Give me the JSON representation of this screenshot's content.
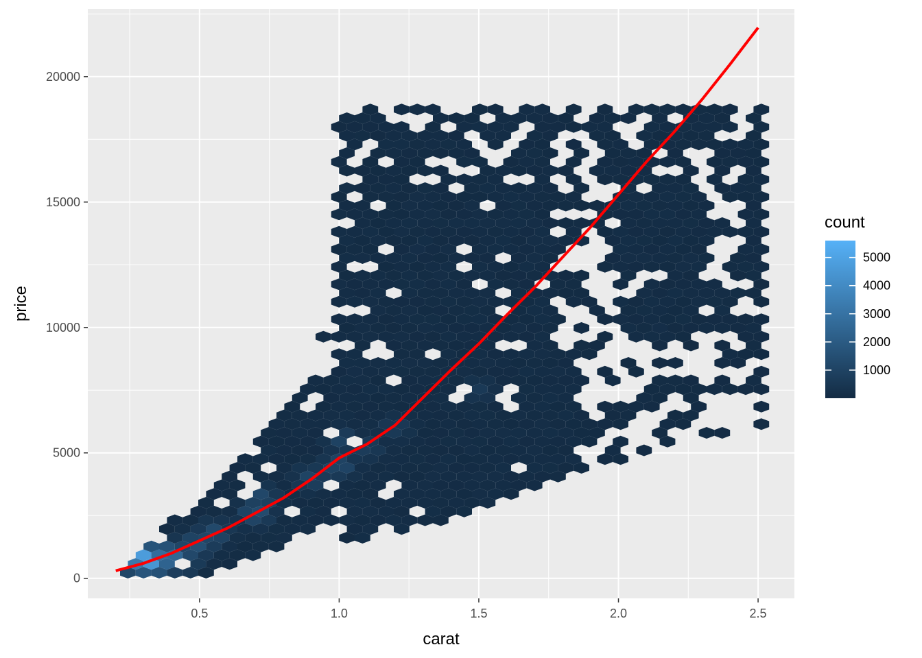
{
  "chart_data": {
    "type": "hexbin",
    "xlabel": "carat",
    "ylabel": "price",
    "xlim": [
      0.1,
      2.63
    ],
    "ylim": [
      -800,
      22700
    ],
    "x_ticks": [
      0.5,
      1.0,
      1.5,
      2.0,
      2.5
    ],
    "x_tick_labels": [
      "0.5",
      "1.0",
      "1.5",
      "2.0",
      "2.5"
    ],
    "y_ticks": [
      0,
      5000,
      10000,
      15000,
      20000
    ],
    "y_tick_labels": [
      "0",
      "5000",
      "10000",
      "15000",
      "20000"
    ],
    "grid": true,
    "panel_background": "#EBEBEB",
    "legend": {
      "title": "count",
      "position": "right",
      "range": [
        1,
        5600
      ],
      "breaks": [
        1000,
        2000,
        3000,
        4000,
        5000
      ],
      "break_labels": [
        "1000",
        "2000",
        "3000",
        "4000",
        "5000"
      ],
      "low_color": "#132B43",
      "high_color": "#56B1F7"
    },
    "hex_bins": [
      {
        "x": 0.31,
        "y": 750,
        "count": 5500
      },
      {
        "x": 0.35,
        "y": 650,
        "count": 3300
      },
      {
        "x": 0.4,
        "y": 950,
        "count": 2600
      },
      {
        "x": 0.43,
        "y": 700,
        "count": 2200
      },
      {
        "x": 0.26,
        "y": 500,
        "count": 1700
      },
      {
        "x": 0.5,
        "y": 1400,
        "count": 1600
      },
      {
        "x": 0.55,
        "y": 1800,
        "count": 1400
      },
      {
        "x": 0.7,
        "y": 2600,
        "count": 1500
      },
      {
        "x": 0.72,
        "y": 3200,
        "count": 1300
      },
      {
        "x": 0.9,
        "y": 4000,
        "count": 1100
      },
      {
        "x": 1.0,
        "y": 4500,
        "count": 1300
      },
      {
        "x": 1.01,
        "y": 5500,
        "count": 1000
      },
      {
        "x": 1.1,
        "y": 5200,
        "count": 800
      },
      {
        "x": 1.2,
        "y": 6000,
        "count": 700
      },
      {
        "x": 1.5,
        "y": 7500,
        "count": 600
      }
    ],
    "fitted_line": {
      "color": "#FF0000",
      "x": [
        0.2,
        0.3,
        0.4,
        0.5,
        0.6,
        0.7,
        0.8,
        0.9,
        1.0,
        1.1,
        1.2,
        1.3,
        1.4,
        1.5,
        1.6,
        1.7,
        1.8,
        1.9,
        2.0,
        2.1,
        2.2,
        2.3,
        2.4,
        2.5
      ],
      "y": [
        300,
        600,
        1000,
        1500,
        2000,
        2600,
        3200,
        3950,
        4800,
        5350,
        6100,
        7200,
        8300,
        9350,
        10500,
        11600,
        12800,
        14000,
        15300,
        16600,
        17800,
        19100,
        20500,
        21950
      ]
    }
  }
}
